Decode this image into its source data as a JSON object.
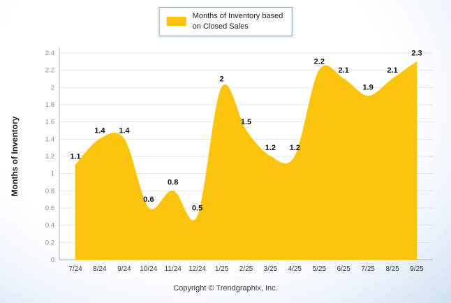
{
  "legend": {
    "line1": "Months of Inventory based",
    "line2": "on Closed Sales"
  },
  "footer": {
    "text": "Copyright © Trendgraphix, Inc."
  },
  "colors": {
    "series_fill": "#FCC50D",
    "legend_border": "#8AA7C8",
    "grid": "#E7E7E7",
    "axis": "#B3B3B3"
  },
  "chart_data": {
    "type": "area",
    "title": "",
    "xlabel": "",
    "ylabel": "Months of Inventory",
    "ylim": [
      0,
      2.4
    ],
    "ytick_step": 0.2,
    "grid": true,
    "legend_position": "top",
    "fill_color": "#FCC50D",
    "categories": [
      "7/24",
      "8/24",
      "9/24",
      "10/24",
      "11/24",
      "12/24",
      "1/25",
      "2/25",
      "3/25",
      "4/25",
      "5/25",
      "6/25",
      "7/25",
      "8/25",
      "9/25"
    ],
    "series": [
      {
        "name": "Months of Inventory based on Closed Sales",
        "values": [
          1.1,
          1.4,
          1.4,
          0.6,
          0.8,
          0.5,
          2,
          1.5,
          1.2,
          1.2,
          2.2,
          2.1,
          1.9,
          2.1,
          2.3
        ]
      }
    ],
    "labels": [
      "1.1",
      "1.4",
      "1.4",
      "0.6",
      "0.8",
      "0.5",
      "2",
      "1.5",
      "1.2",
      "1.2",
      "2.2",
      "2.1",
      "1.9",
      "2.1",
      "2.3"
    ]
  }
}
